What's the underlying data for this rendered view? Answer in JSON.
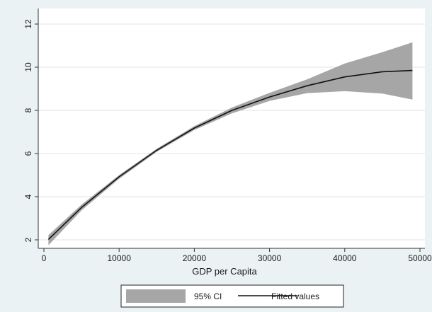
{
  "chart_data": {
    "type": "area",
    "title": "",
    "xlabel": "GDP per Capita",
    "ylabel": "",
    "xlim": [
      0,
      50000
    ],
    "ylim": [
      2,
      12
    ],
    "x_ticks": [
      "0",
      "10000",
      "20000",
      "30000",
      "40000",
      "50000"
    ],
    "y_ticks": [
      "2",
      "4",
      "6",
      "8",
      "10",
      "12"
    ],
    "grid": "horizontal",
    "legend_position": "bottom",
    "series": [
      {
        "name": "95% CI",
        "kind": "band",
        "color": "#a6a6a6",
        "x": [
          600,
          5000,
          10000,
          15000,
          20000,
          25000,
          30000,
          35000,
          40000,
          45000,
          49000
        ],
        "lower": [
          1.75,
          3.36,
          4.83,
          6.08,
          7.09,
          7.86,
          8.44,
          8.8,
          8.89,
          8.78,
          8.5
        ],
        "upper": [
          2.22,
          3.63,
          5.0,
          6.22,
          7.27,
          8.13,
          8.81,
          9.44,
          10.17,
          10.7,
          11.15
        ]
      },
      {
        "name": "Fitted values",
        "kind": "line",
        "color": "#111111",
        "x": [
          600,
          5000,
          10000,
          15000,
          20000,
          25000,
          30000,
          35000,
          40000,
          45000,
          49000
        ],
        "y": [
          2.02,
          3.5,
          4.92,
          6.15,
          7.18,
          8.0,
          8.62,
          9.14,
          9.55,
          9.79,
          9.85
        ]
      }
    ]
  }
}
